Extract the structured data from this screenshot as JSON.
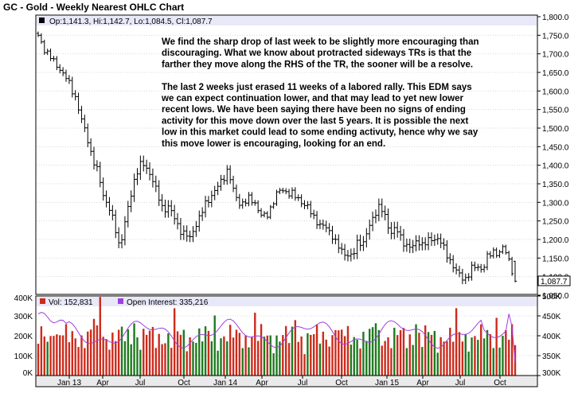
{
  "title": "GC - Gold - Weekly Nearest OHLC Chart",
  "ohlc_readout": "Op:1,141.3, Hi:1,142.7, Lo:1,084.5, Cl:1,087.7",
  "last_price_tag": "1,087.7",
  "annotation_lines": [
    "We find the sharp drop of last week to be slightly more encouraging than",
    "discouraging.  What we know about protracted sideways TRs is that the",
    "farther they move along the RHS of the TR, the sooner will be a resolve.",
    "",
    "The last 2 weeks just erased 11 weeks of a labored rally.  This EDM says",
    "we can expect continuation lower, and that may lead to yet new lower",
    "recent lows.  We have been saying there have been no signs of ending",
    "activity for this move down over the last 5 years.  It is possible the next",
    "low in this market could lead to some ending activuty, hence why we say",
    "this move lower is encouraging, looking for an end."
  ],
  "price_ticks": [
    "1,800.0",
    "1,750.0",
    "1,700.0",
    "1,650.0",
    "1,600.0",
    "1,550.0",
    "1,500.0",
    "1,450.0",
    "1,400.0",
    "1,350.0",
    "1,300.0",
    "1,250.0",
    "1,200.0",
    "1,150.0",
    "1,100.0",
    "1,050.0"
  ],
  "volume_ticks_left": [
    "400K",
    "300K",
    "200K",
    "100K",
    "0K"
  ],
  "oi_ticks_right": [
    "500K",
    "450K",
    "400K",
    "350K",
    "300K"
  ],
  "volume_legend": "Vol: 152,831",
  "oi_legend": "Open Interest: 335,216",
  "x_ticks": [
    "Jan 13",
    "Apr",
    "Jul",
    "Oct",
    "Jan 14",
    "Apr",
    "Jul",
    "Oct",
    "Jan 15",
    "Apr",
    "Jul",
    "Oct"
  ],
  "colors": {
    "up_volume": "#1f7a1f",
    "down_volume": "#cc2b1d",
    "open_interest": "#a040e0",
    "header_band": "#e8e8f8",
    "price_bar": "#000000"
  },
  "chart_data": {
    "type": "ohlc",
    "period": "weekly",
    "price_axis": {
      "min": 1050,
      "max": 1800,
      "side": "right"
    },
    "volume_axis": {
      "min": 0,
      "max": 400000,
      "side": "left"
    },
    "open_interest_axis": {
      "min": 300000,
      "max": 500000,
      "side": "right"
    },
    "x_labels": [
      "Jan 13",
      "Apr",
      "Jul",
      "Oct",
      "Jan 14",
      "Apr",
      "Jul",
      "Oct",
      "Jan 15",
      "Apr",
      "Jul",
      "Oct"
    ],
    "anchor_closes": [
      1745,
      1715,
      1700,
      1672,
      1660,
      1640,
      1608,
      1580,
      1520,
      1475,
      1420,
      1380,
      1320,
      1290,
      1240,
      1180,
      1245,
      1310,
      1380,
      1405,
      1390,
      1370,
      1320,
      1280,
      1290,
      1260,
      1230,
      1215,
      1202,
      1240,
      1265,
      1300,
      1320,
      1338,
      1362,
      1390,
      1330,
      1300,
      1298,
      1310,
      1300,
      1265,
      1260,
      1290,
      1320,
      1338,
      1325,
      1320,
      1312,
      1294,
      1280,
      1260,
      1235,
      1235,
      1220,
      1185,
      1170,
      1160,
      1150,
      1200,
      1190,
      1230,
      1270,
      1290,
      1260,
      1220,
      1230,
      1200,
      1185,
      1175,
      1200,
      1185,
      1195,
      1205,
      1200,
      1170,
      1145,
      1115,
      1100,
      1095,
      1120,
      1130,
      1118,
      1155,
      1170,
      1160,
      1180,
      1140,
      1088
    ],
    "last_bar": {
      "open": 1141.3,
      "high": 1142.7,
      "low": 1084.5,
      "close": 1087.7
    }
  }
}
